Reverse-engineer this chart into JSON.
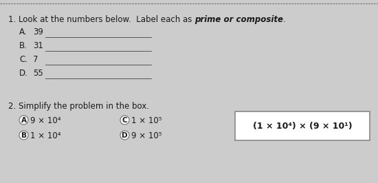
{
  "bg_color": "#cccccc",
  "text_color": "#1a1a1a",
  "line_color": "#555555",
  "box_edge_color": "#888888",
  "dotted_color": "#888888",
  "q1_prefix": "1. Look at the numbers below.  Label each as ",
  "q1_italic": "prime or composite",
  "q1_suffix": ".",
  "items": [
    {
      "label": "A.",
      "value": "39"
    },
    {
      "label": "B.",
      "value": "31"
    },
    {
      "label": "C.",
      "value": "7"
    },
    {
      "label": "D.",
      "value": "55"
    }
  ],
  "q2_text": "2. Simplify the problem in the box.",
  "options": [
    {
      "circle": "A",
      "text": "9 × 10⁴",
      "col": 0,
      "row": 0
    },
    {
      "circle": "C",
      "text": "1 × 10⁵",
      "col": 1,
      "row": 0
    },
    {
      "circle": "B",
      "text": "1 × 10⁴",
      "col": 0,
      "row": 1
    },
    {
      "circle": "D",
      "text": "9 × 10⁵",
      "col": 1,
      "row": 1
    }
  ],
  "box_text": "(1 × 10⁴) × (9 × 10¹)",
  "font_size": 8.5,
  "font_size_small": 7.5,
  "font_size_box": 9.0
}
